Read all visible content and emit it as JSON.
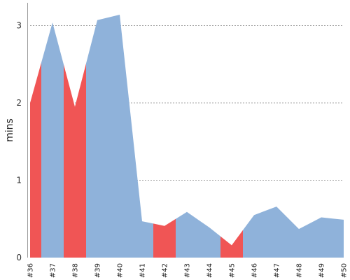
{
  "chart_data": {
    "type": "area",
    "title": "",
    "xlabel": "",
    "ylabel": "mins",
    "ylim": [
      0,
      3.3
    ],
    "yticks": [
      0,
      1,
      2,
      3
    ],
    "grid": "horizontal-dashed",
    "categories": [
      "#36",
      "#37",
      "#38",
      "#39",
      "#40",
      "#41",
      "#42",
      "#43",
      "#44",
      "#45",
      "#46",
      "#47",
      "#48",
      "#49",
      "#50"
    ],
    "values": [
      2.0,
      3.04,
      1.95,
      3.07,
      3.14,
      0.47,
      0.41,
      0.59,
      0.39,
      0.16,
      0.55,
      0.66,
      0.37,
      0.52,
      0.49
    ],
    "status": [
      "fail",
      "ok",
      "fail",
      "ok",
      "ok",
      "ok",
      "fail",
      "ok",
      "ok",
      "fail",
      "ok",
      "ok",
      "ok",
      "ok",
      "ok"
    ],
    "colors": {
      "ok": "#8fb2da",
      "fail": "#f05555",
      "grid": "#888888",
      "axis": "#999999"
    }
  }
}
